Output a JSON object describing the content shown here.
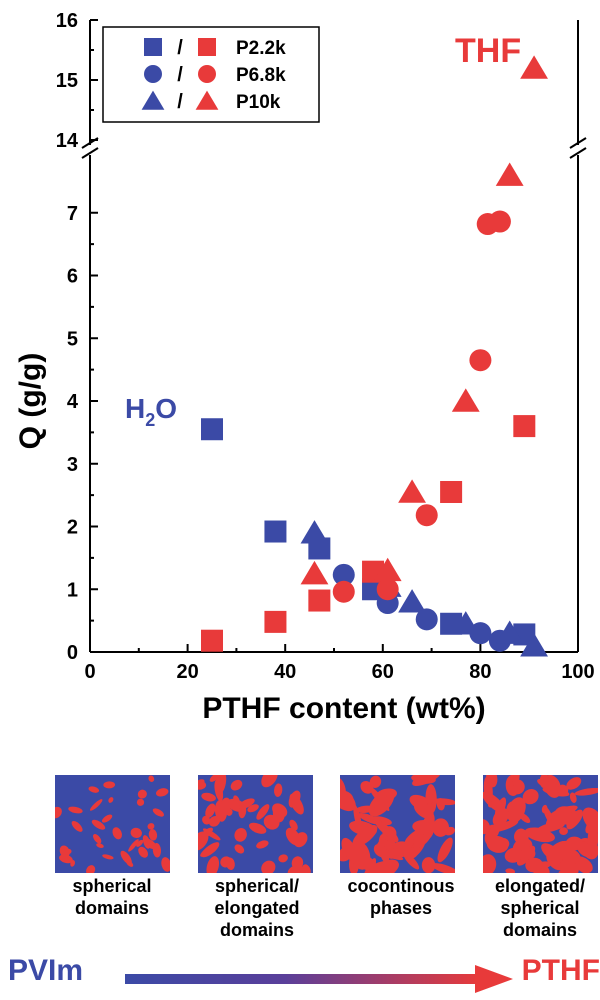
{
  "chart_data": {
    "type": "scatter",
    "xlabel": "PTHF content (wt%)",
    "ylabel": "Q (g/g)",
    "xlim": [
      0,
      100
    ],
    "ylim_lower": [
      0,
      8
    ],
    "ylim_upper": [
      14,
      16
    ],
    "x_ticks": [
      "0",
      "20",
      "40",
      "60",
      "80",
      "100"
    ],
    "y_ticks_lower": [
      "0",
      "1",
      "2",
      "3",
      "4",
      "5",
      "6",
      "7"
    ],
    "y_ticks_upper": [
      "14",
      "15",
      "16"
    ],
    "axis_break": true,
    "legend_position": "top-left",
    "annotations": {
      "water": "H",
      "water_sub": "2",
      "water_end": "O",
      "thf": "THF"
    },
    "series": [
      {
        "name": "P2.2k",
        "solvent": "H2O",
        "marker": "square",
        "color": "#3b4aa6",
        "points": [
          [
            25,
            3.55
          ],
          [
            38,
            1.92
          ],
          [
            47,
            1.65
          ],
          [
            58,
            1.0
          ],
          [
            74,
            0.45
          ],
          [
            89,
            0.28
          ]
        ]
      },
      {
        "name": "P6.8k",
        "solvent": "H2O",
        "marker": "circle",
        "color": "#3b4aa6",
        "points": [
          [
            52,
            1.23
          ],
          [
            61,
            0.78
          ],
          [
            69,
            0.52
          ],
          [
            80,
            0.3
          ],
          [
            84,
            0.18
          ]
        ]
      },
      {
        "name": "P10k",
        "solvent": "H2O",
        "marker": "triangle",
        "color": "#3b4aa6",
        "points": [
          [
            46,
            1.9
          ],
          [
            61,
            1.05
          ],
          [
            66,
            0.8
          ],
          [
            77,
            0.45
          ],
          [
            86,
            0.3
          ],
          [
            91,
            0.1
          ]
        ]
      },
      {
        "name": "P2.2k",
        "solvent": "THF",
        "marker": "square",
        "color": "#e83a3a",
        "points": [
          [
            25,
            0.18
          ],
          [
            38,
            0.48
          ],
          [
            47,
            0.82
          ],
          [
            58,
            1.28
          ],
          [
            74,
            2.55
          ],
          [
            89,
            3.6
          ]
        ]
      },
      {
        "name": "P6.8k",
        "solvent": "THF",
        "marker": "circle",
        "color": "#e83a3a",
        "points": [
          [
            52,
            0.96
          ],
          [
            61,
            1.0
          ],
          [
            69,
            2.18
          ],
          [
            80,
            4.65
          ],
          [
            81.5,
            6.82
          ],
          [
            84,
            6.86
          ]
        ]
      },
      {
        "name": "P10k",
        "solvent": "THF",
        "marker": "triangle",
        "color": "#e83a3a",
        "points": [
          [
            46,
            1.25
          ],
          [
            61,
            1.3
          ],
          [
            66,
            2.55
          ],
          [
            77,
            4.0
          ],
          [
            86,
            7.6
          ],
          [
            91,
            15.2
          ]
        ]
      }
    ],
    "legend": [
      {
        "sep": "/",
        "label": "P2.2k",
        "marker": "square"
      },
      {
        "sep": "/",
        "label": "P6.8k",
        "marker": "circle"
      },
      {
        "sep": "/",
        "label": "P10k",
        "marker": "triangle"
      }
    ]
  },
  "colors": {
    "pvim": "#3b4aa6",
    "pthf": "#e83a3a"
  },
  "morphologies": [
    {
      "lines": [
        "spherical",
        "domains"
      ],
      "seed": 11,
      "fraction": 0.22,
      "blob": 4
    },
    {
      "lines": [
        "spherical/",
        "elongated",
        "domains"
      ],
      "seed": 23,
      "fraction": 0.38,
      "blob": 5
    },
    {
      "lines": [
        "cocontinous",
        "phases"
      ],
      "seed": 37,
      "fraction": 0.52,
      "blob": 6
    },
    {
      "lines": [
        "elongated/",
        "spherical",
        "domains"
      ],
      "seed": 51,
      "fraction": 0.7,
      "blob": 5
    }
  ],
  "gradient": {
    "left": "PVIm",
    "right": "PTHF"
  }
}
